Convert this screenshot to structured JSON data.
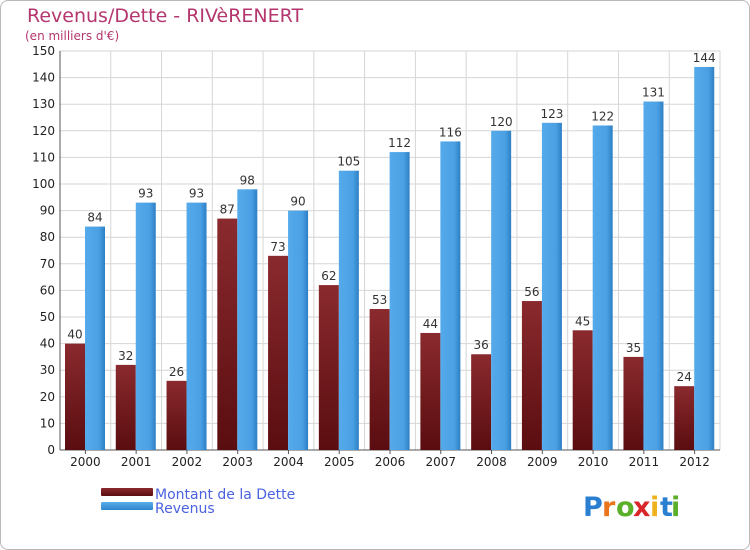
{
  "chart_data": {
    "type": "bar",
    "title": "Revenus/Dette - RIVèRENERT",
    "subtitle": "(en milliers d'€)",
    "categories": [
      "2000",
      "2001",
      "2002",
      "2003",
      "2004",
      "2005",
      "2006",
      "2007",
      "2008",
      "2009",
      "2010",
      "2011",
      "2012"
    ],
    "series": [
      {
        "name": "Montant de la Dette",
        "color": "#7a1a1e",
        "values": [
          40,
          32,
          26,
          87,
          73,
          62,
          53,
          44,
          36,
          56,
          45,
          35,
          24
        ]
      },
      {
        "name": "Revenus",
        "color": "#3d9be0",
        "values": [
          84,
          93,
          93,
          98,
          90,
          105,
          112,
          116,
          120,
          123,
          122,
          131,
          144
        ]
      }
    ],
    "ylim": [
      0,
      150
    ],
    "y_ticks": [
      0,
      10,
      20,
      30,
      40,
      50,
      60,
      70,
      80,
      90,
      100,
      110,
      120,
      130,
      140,
      150
    ],
    "grid": true,
    "legend_position": "bottom-left"
  },
  "logo": {
    "letters": [
      "P",
      "r",
      "o",
      "x",
      "i",
      "t",
      "i"
    ],
    "colors": [
      "#2a7fd0",
      "#e8741c",
      "#5bb02a",
      "#d8262a",
      "#f0b21c",
      "#2a7fd0",
      "#5bb02a"
    ]
  }
}
